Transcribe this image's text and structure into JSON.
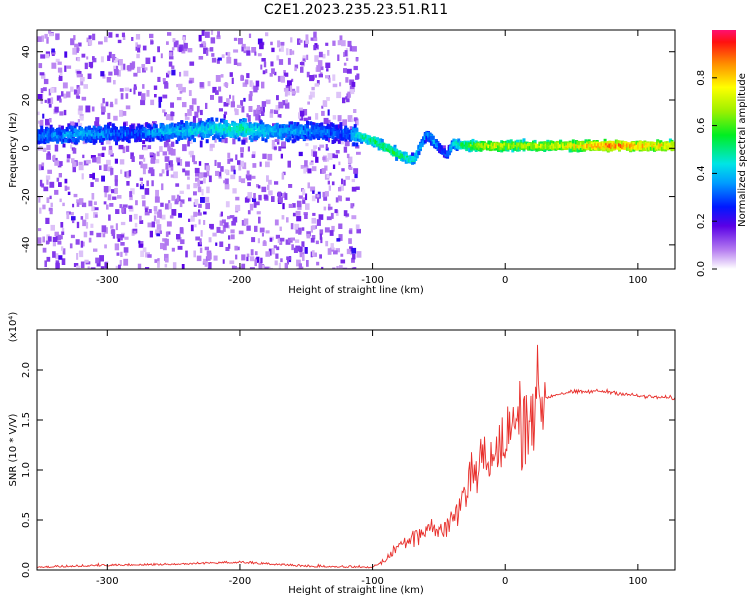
{
  "figure": {
    "title": "C2E1.2023.235.23.51.R11"
  },
  "chart_data": [
    {
      "type": "heatmap",
      "xlabel": "Height of straight line (km)",
      "ylabel": "Frequency (Hz)",
      "xlim": [
        -353,
        128
      ],
      "ylim": [
        -50,
        49
      ],
      "xticks": [
        -300,
        -200,
        -100,
        0,
        100
      ],
      "yticks": [
        -40,
        -20,
        0,
        20,
        40
      ],
      "colorbar": {
        "label": "Normalized spectral amplitude",
        "range": [
          0,
          1
        ],
        "ticks": [
          0.0,
          0.2,
          0.4,
          0.6,
          0.8
        ]
      },
      "ridge": {
        "x": [
          -345,
          -320,
          -300,
          -280,
          -260,
          -240,
          -220,
          -200,
          -180,
          -160,
          -140,
          -120,
          -110,
          -100,
          -90,
          -80,
          -70,
          -60,
          -55,
          -50,
          -45,
          -40,
          -30,
          -20,
          -10,
          0,
          20,
          40,
          60,
          80,
          100,
          128
        ],
        "frequency": [
          5,
          6,
          6,
          6,
          7,
          7,
          8,
          8,
          7,
          7,
          7,
          6,
          5,
          3,
          0,
          -3,
          -5,
          6,
          3,
          0,
          -3,
          2,
          1,
          1,
          1,
          1,
          1,
          1,
          1,
          1,
          1,
          1
        ],
        "amplitude": [
          0.35,
          0.38,
          0.35,
          0.3,
          0.4,
          0.42,
          0.45,
          0.5,
          0.42,
          0.38,
          0.35,
          0.3,
          0.5,
          0.55,
          0.58,
          0.55,
          0.45,
          0.35,
          0.4,
          0.3,
          0.3,
          0.45,
          0.6,
          0.7,
          0.75,
          0.7,
          0.7,
          0.75,
          0.82,
          0.92,
          0.85,
          0.8
        ]
      }
    },
    {
      "type": "line",
      "xlabel": "Height of straight line (km)",
      "ylabel": "SNR (10 * V/V)",
      "multiplier_label": "(x10⁴)",
      "xlim": [
        -353,
        128
      ],
      "ylim": [
        0,
        2.4
      ],
      "xticks": [
        -300,
        -200,
        -100,
        0,
        100
      ],
      "yticks": [
        0.0,
        0.5,
        1.0,
        1.5,
        2.0
      ],
      "series": [
        {
          "color": "#e8302c",
          "x": [
            -353,
            -300,
            -250,
            -200,
            -150,
            -100,
            -90,
            -80,
            -70,
            -60,
            -55,
            -50,
            -45,
            -40,
            -35,
            -30,
            -25,
            -20,
            -15,
            -10,
            -5,
            0,
            10,
            20,
            30,
            40,
            50,
            60,
            70,
            80,
            90,
            95,
            100,
            110,
            128
          ],
          "values": [
            0.02,
            0.04,
            0.05,
            0.07,
            0.03,
            0.02,
            0.1,
            0.25,
            0.35,
            0.4,
            0.45,
            0.35,
            0.45,
            0.5,
            0.6,
            0.8,
            1.0,
            1.1,
            1.15,
            1.05,
            1.15,
            1.3,
            1.5,
            1.62,
            1.72,
            1.76,
            1.78,
            1.78,
            1.79,
            1.78,
            1.76,
            1.75,
            1.74,
            1.73,
            1.72
          ]
        }
      ]
    }
  ]
}
